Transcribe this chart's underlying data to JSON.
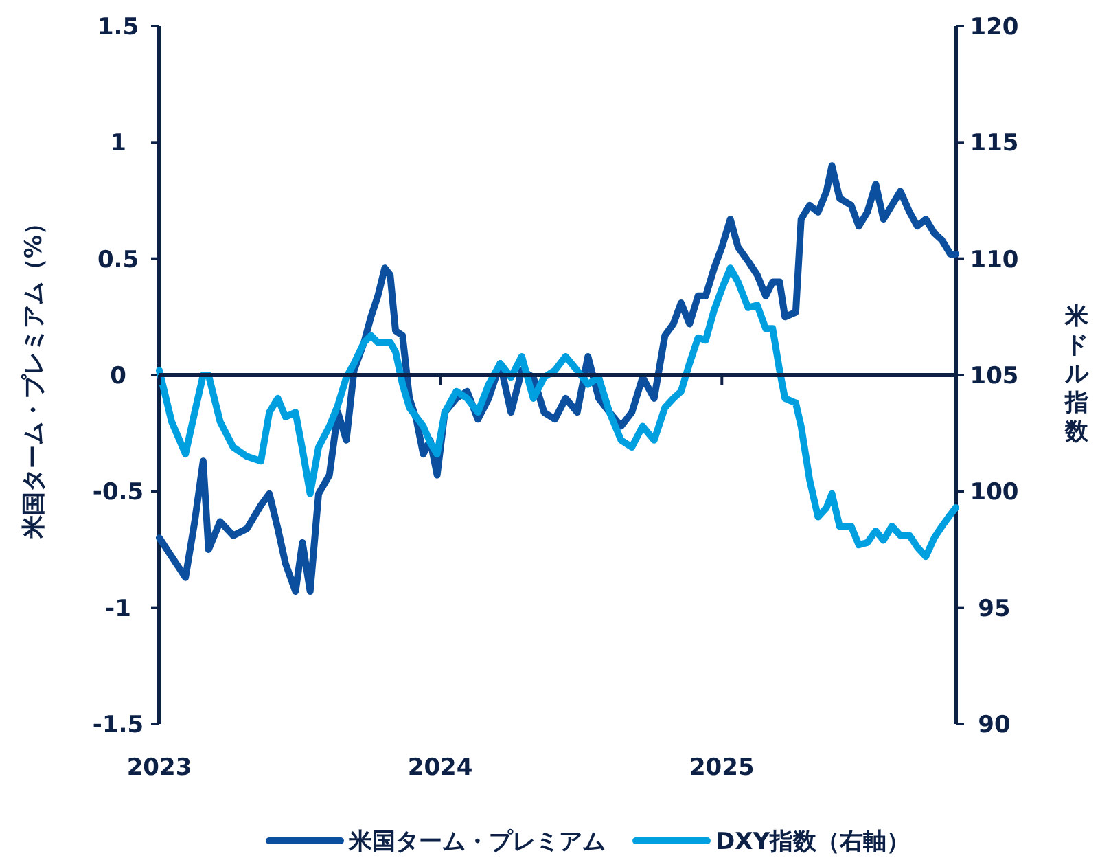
{
  "chart_data": {
    "type": "line",
    "ylabel": "米国ターム・プレミアム（%）",
    "y2label": "米ドル指数",
    "x": [
      "2023-01-01",
      "2023-01-17",
      "2023-02-04",
      "2023-02-16",
      "2023-02-27",
      "2023-03-06",
      "2023-03-21",
      "2023-04-07",
      "2023-04-25",
      "2023-05-13",
      "2023-05-24",
      "2023-06-04",
      "2023-06-14",
      "2023-06-27",
      "2023-07-06",
      "2023-07-16",
      "2023-07-27",
      "2023-08-10",
      "2023-08-21",
      "2023-09-01",
      "2023-09-11",
      "2023-09-24",
      "2023-10-03",
      "2023-10-12",
      "2023-10-21",
      "2023-10-28",
      "2023-11-04",
      "2023-11-13",
      "2023-11-22",
      "2023-12-01",
      "2023-12-10",
      "2023-12-19",
      "2023-12-28",
      "2024-01-07",
      "2024-01-22",
      "2024-02-05",
      "2024-02-19",
      "2024-03-04",
      "2024-03-19",
      "2024-04-02",
      "2024-04-16",
      "2024-05-01",
      "2024-05-15",
      "2024-05-29",
      "2024-06-12",
      "2024-06-27",
      "2024-07-11",
      "2024-07-25",
      "2024-08-08",
      "2024-08-23",
      "2024-09-06",
      "2024-09-20",
      "2024-10-05",
      "2024-10-19",
      "2024-10-30",
      "2024-11-09",
      "2024-11-20",
      "2024-12-01",
      "2024-12-11",
      "2024-12-22",
      "2025-01-01",
      "2025-01-12",
      "2025-01-22",
      "2025-02-04",
      "2025-02-16",
      "2025-02-27",
      "2025-03-08",
      "2025-03-17",
      "2025-03-24",
      "2025-04-07",
      "2025-04-14",
      "2025-04-25",
      "2025-05-06",
      "2025-05-17",
      "2025-05-24",
      "2025-06-03",
      "2025-06-18",
      "2025-06-28",
      "2025-07-09",
      "2025-07-20",
      "2025-07-30",
      "2025-08-10",
      "2025-08-21",
      "2025-09-02",
      "2025-09-12",
      "2025-09-23",
      "2025-10-04",
      "2025-10-14",
      "2025-10-25",
      "2025-11-01"
    ],
    "xlim": [
      "2023-01-01",
      "2025-11-01"
    ],
    "xticks": [
      {
        "value": "2023-01-01",
        "label": "2023"
      },
      {
        "value": "2024-01-01",
        "label": "2024"
      },
      {
        "value": "2025-01-01",
        "label": "2025"
      }
    ],
    "ylim": [
      -1.5,
      1.5
    ],
    "yticks": [
      -1.5,
      -1,
      -0.5,
      0,
      0.5,
      1,
      1.5
    ],
    "y2lim": [
      90,
      120
    ],
    "y2ticks": [
      90,
      95,
      100,
      105,
      110,
      115,
      120
    ],
    "grid": false,
    "legend": "bottom",
    "marker": "none",
    "line_style": "solid",
    "series": [
      {
        "name": "米国ターム・プレミアム",
        "color": "#0b4f9e",
        "values": [
          -0.7,
          -0.78,
          -0.87,
          -0.63,
          -0.37,
          -0.75,
          -0.63,
          -0.69,
          -0.66,
          -0.56,
          -0.51,
          -0.66,
          -0.81,
          -0.93,
          -0.72,
          -0.93,
          -0.51,
          -0.43,
          -0.16,
          -0.28,
          0.02,
          0.14,
          0.25,
          0.34,
          0.46,
          0.43,
          0.19,
          0.17,
          -0.1,
          -0.19,
          -0.34,
          -0.28,
          -0.43,
          -0.16,
          -0.1,
          -0.07,
          -0.19,
          -0.1,
          0.05,
          -0.16,
          0.02,
          -0.01,
          -0.16,
          -0.19,
          -0.1,
          -0.16,
          0.08,
          -0.1,
          -0.16,
          -0.22,
          -0.16,
          -0.01,
          -0.1,
          0.17,
          0.22,
          0.31,
          0.22,
          0.34,
          0.34,
          0.46,
          0.55,
          0.67,
          0.55,
          0.49,
          0.43,
          0.34,
          0.4,
          0.4,
          0.25,
          0.27,
          0.67,
          0.73,
          0.7,
          0.79,
          0.9,
          0.76,
          0.73,
          0.64,
          0.7,
          0.82,
          0.67,
          0.73,
          0.79,
          0.7,
          0.64,
          0.67,
          0.61,
          0.58,
          0.52,
          0.52
        ]
      },
      {
        "name": "DXY指数（右軸）",
        "color": "#00a0e0",
        "axis": "y2",
        "values": [
          105.2,
          103,
          101.6,
          103.4,
          105,
          105,
          103,
          101.9,
          101.5,
          101.3,
          103.4,
          104,
          103.2,
          103.4,
          101.8,
          99.9,
          101.9,
          102.8,
          103.7,
          104.9,
          105.5,
          106.4,
          106.7,
          106.4,
          106.4,
          106.4,
          106,
          104.6,
          103.6,
          103.2,
          102.8,
          102.1,
          101.6,
          103.4,
          104.3,
          104,
          103.4,
          104.6,
          105.5,
          104.9,
          105.8,
          104,
          104.9,
          105.2,
          105.8,
          105.2,
          104.6,
          104.9,
          103.4,
          102.2,
          101.9,
          102.8,
          102.2,
          103.6,
          104,
          104.3,
          105.5,
          106.6,
          106.5,
          107.8,
          108.7,
          109.6,
          109,
          107.9,
          108,
          107,
          107,
          105.2,
          104,
          103.8,
          102.8,
          100.5,
          98.9,
          99.3,
          99.9,
          98.5,
          98.5,
          97.7,
          97.8,
          98.3,
          97.9,
          98.5,
          98.1,
          98.1,
          97.6,
          97.2,
          98,
          98.5,
          99,
          99.3
        ]
      }
    ]
  }
}
